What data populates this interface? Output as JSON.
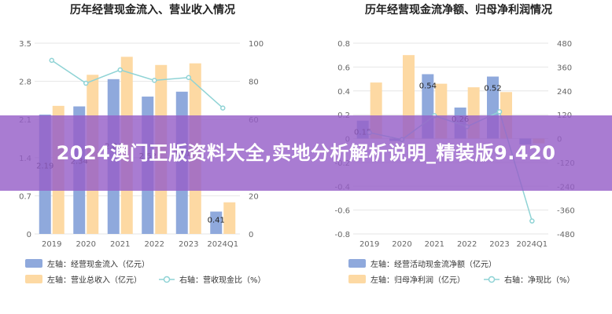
{
  "banner": {
    "text": "2024澳门正版资料大全,实地分析解析说明_精装版9.420"
  },
  "colors": {
    "blue_bar": "#8fa9dc",
    "orange_bar": "#fdd9a3",
    "line": "#8fd3d5"
  },
  "chart_data": [
    {
      "type": "bar",
      "title": "历年经营现金流入、营业收入情况",
      "categories": [
        "2019",
        "2020",
        "2021",
        "2022",
        "2023",
        "2024Q1"
      ],
      "left_axis": {
        "ticks": [
          "3.5",
          "2.8",
          "2.1",
          "1.4",
          "0.7",
          "0"
        ],
        "ylim": [
          0,
          3.5
        ]
      },
      "right_axis": {
        "ticks": [
          "100",
          "80",
          "60",
          "40",
          "20",
          "0"
        ],
        "ylim": [
          0,
          100
        ]
      },
      "series": [
        {
          "name": "左轴：经营现金流入（亿元）",
          "axis": "left",
          "kind": "bar",
          "values": [
            2.19,
            2.34,
            2.84,
            2.52,
            2.61,
            0.41
          ],
          "labels": [
            "2.19",
            "2.34",
            "2.84",
            "2.52",
            "2.61",
            "0.41"
          ]
        },
        {
          "name": "左轴：营业总收入（亿元）",
          "axis": "left",
          "kind": "bar",
          "values": [
            2.35,
            2.92,
            3.25,
            3.1,
            3.13,
            0.58
          ]
        },
        {
          "name": "右轴：营收现金比（%）",
          "axis": "right",
          "kind": "line",
          "values": [
            91,
            79,
            86,
            80.5,
            82,
            66
          ]
        }
      ]
    },
    {
      "type": "bar",
      "title": "历年经营现金流净额、归母净利润情况",
      "categories": [
        "2019",
        "2020",
        "2021",
        "2022",
        "2023",
        "2024Q1"
      ],
      "left_axis": {
        "ticks": [
          "0.8",
          "0.6",
          "0.4",
          "0.2",
          "0",
          "-0.2",
          "-0.4",
          "-0.6",
          "-0.8"
        ],
        "ylim": [
          -0.8,
          0.8
        ]
      },
      "right_axis": {
        "ticks": [
          "480",
          "360",
          "240",
          "120",
          "0",
          "-120",
          "-240",
          "-360",
          "-480"
        ],
        "ylim": [
          -480,
          480
        ]
      },
      "series": [
        {
          "name": "左轴：经营活动现金流净额（亿元）",
          "axis": "left",
          "kind": "bar",
          "values": [
            0.15,
            -0.02,
            0.54,
            0.26,
            0.52,
            -0.05
          ],
          "labels": [
            "0.15",
            "",
            "0.54",
            "0.26",
            "0.52",
            ""
          ]
        },
        {
          "name": "左轴：归母净利润（亿元）",
          "axis": "left",
          "kind": "bar",
          "values": [
            0.47,
            0.7,
            0.46,
            0.43,
            0.39,
            -0.04
          ]
        },
        {
          "name": "右轴：净现比（%）",
          "axis": "right",
          "kind": "line",
          "values": [
            30,
            -5,
            115,
            60,
            135,
            -415
          ]
        }
      ]
    }
  ]
}
